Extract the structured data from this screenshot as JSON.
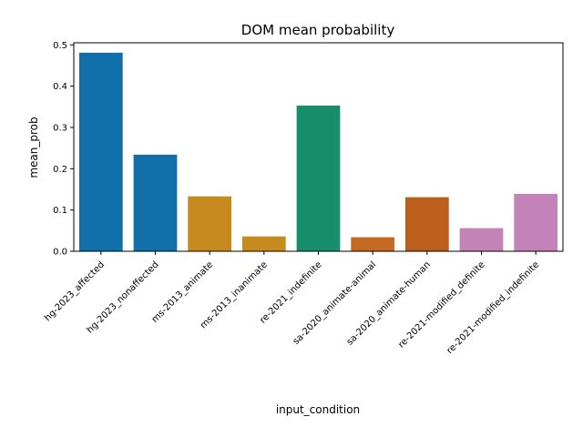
{
  "chart_data": {
    "type": "bar",
    "title": "DOM mean probability",
    "xlabel": "input_condition",
    "ylabel": "mean_prob",
    "categories": [
      "hg-2023_affected",
      "hg-2023_nonaffected",
      "ms-2013_animate",
      "ms-2013_inanimate",
      "re-2021_indefinite",
      "sa-2020_animate-animal",
      "sa-2020_animate-human",
      "re-2021-modified_definite",
      "re-2021-modified_indefinite"
    ],
    "values": [
      0.481,
      0.234,
      0.133,
      0.036,
      0.353,
      0.034,
      0.131,
      0.056,
      0.139
    ],
    "colors": [
      "#1170aa",
      "#1170aa",
      "#c68a1f",
      "#c68a1f",
      "#178d6a",
      "#c56a22",
      "#bc5e1c",
      "#c483b8",
      "#c483b8"
    ],
    "ylim": [
      0,
      0.505
    ],
    "yticks": [
      "0.0",
      "0.1",
      "0.2",
      "0.3",
      "0.4",
      "0.5"
    ],
    "ytick_values": [
      0,
      0.1,
      0.2,
      0.3,
      0.4,
      0.5
    ],
    "grid": false,
    "legend": "none"
  }
}
